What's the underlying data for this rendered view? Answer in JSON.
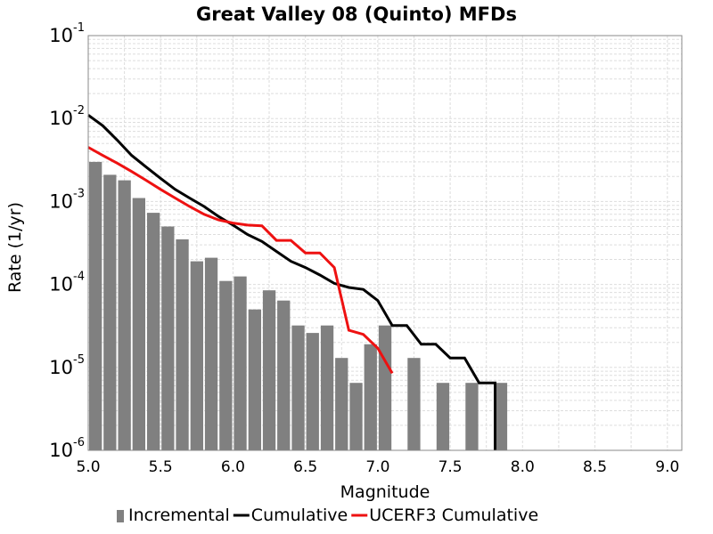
{
  "chart_data": {
    "type": "bar",
    "title": "Great Valley 08 (Quinto) MFDs",
    "xlabel": "Magnitude",
    "ylabel": "Rate (1/yr)",
    "xlim": [
      5.0,
      9.1
    ],
    "ylim": [
      1e-06,
      0.1
    ],
    "y_scale": "log",
    "grid": true,
    "legend_placement": "bottom",
    "x_ticks": [
      "5.0",
      "5.5",
      "6.0",
      "6.5",
      "7.0",
      "7.5",
      "8.0",
      "8.5",
      "9.0"
    ],
    "y_ticks": [
      {
        "base": "10",
        "exp": "-1"
      },
      {
        "base": "10",
        "exp": "-2"
      },
      {
        "base": "10",
        "exp": "-3"
      },
      {
        "base": "10",
        "exp": "-4"
      },
      {
        "base": "10",
        "exp": "-5"
      },
      {
        "base": "10",
        "exp": "-6"
      }
    ],
    "colors": {
      "incremental": "#808080",
      "cumulative": "#000000",
      "ucerf3": "#ee1111"
    },
    "series": [
      {
        "name": "Incremental",
        "kind": "bar",
        "color": "#808080",
        "x": [
          5.05,
          5.15,
          5.25,
          5.35,
          5.45,
          5.55,
          5.65,
          5.75,
          5.85,
          5.95,
          6.05,
          6.15,
          6.25,
          6.35,
          6.45,
          6.55,
          6.65,
          6.75,
          6.85,
          6.95,
          7.05,
          7.25,
          7.45,
          7.65,
          7.85
        ],
        "values": [
          0.003,
          0.0021,
          0.0018,
          0.0011,
          0.00073,
          0.0005,
          0.00035,
          0.00019,
          0.00021,
          0.00011,
          0.000125,
          5e-05,
          8.5e-05,
          6.4e-05,
          3.2e-05,
          2.6e-05,
          3.2e-05,
          1.3e-05,
          6.5e-06,
          1.9e-05,
          3.2e-05,
          1.3e-05,
          6.5e-06,
          6.5e-06,
          6.5e-06
        ]
      },
      {
        "name": "Cumulative",
        "kind": "line",
        "color": "#000000",
        "x": [
          5.0,
          5.1,
          5.2,
          5.3,
          5.4,
          5.5,
          5.6,
          5.7,
          5.8,
          5.9,
          6.0,
          6.1,
          6.2,
          6.3,
          6.4,
          6.5,
          6.6,
          6.7,
          6.8,
          6.9,
          7.0,
          7.1,
          7.2,
          7.3,
          7.4,
          7.5,
          7.6,
          7.7,
          7.8,
          7.81,
          7.81
        ],
        "values": [
          0.011,
          0.0082,
          0.0055,
          0.0036,
          0.0026,
          0.0019,
          0.0014,
          0.0011,
          0.00087,
          0.00066,
          0.00052,
          0.0004,
          0.00033,
          0.00025,
          0.00019,
          0.00016,
          0.00013,
          0.000103,
          9.2e-05,
          8.7e-05,
          6.4e-05,
          3.2e-05,
          3.2e-05,
          1.9e-05,
          1.9e-05,
          1.3e-05,
          1.3e-05,
          6.5e-06,
          6.5e-06,
          6.5e-06,
          1e-06
        ]
      },
      {
        "name": "UCERF3 Cumulative",
        "kind": "line",
        "color": "#ee1111",
        "x": [
          5.0,
          5.1,
          5.2,
          5.3,
          5.4,
          5.5,
          5.6,
          5.7,
          5.8,
          5.9,
          6.0,
          6.1,
          6.2,
          6.3,
          6.4,
          6.5,
          6.6,
          6.7,
          6.8,
          6.9,
          7.0,
          7.1
        ],
        "values": [
          0.0045,
          0.0036,
          0.0029,
          0.0023,
          0.0018,
          0.0014,
          0.0011,
          0.00087,
          0.0007,
          0.0006,
          0.00055,
          0.00052,
          0.00051,
          0.00034,
          0.00034,
          0.00024,
          0.00024,
          0.00016,
          2.8e-05,
          2.5e-05,
          1.7e-05,
          8.5e-06
        ]
      }
    ],
    "legend": [
      {
        "label": "Incremental",
        "kind": "bar",
        "color": "#808080"
      },
      {
        "label": "Cumulative",
        "kind": "line",
        "color": "#000000"
      },
      {
        "label": "UCERF3 Cumulative",
        "kind": "line",
        "color": "#ee1111"
      }
    ]
  }
}
